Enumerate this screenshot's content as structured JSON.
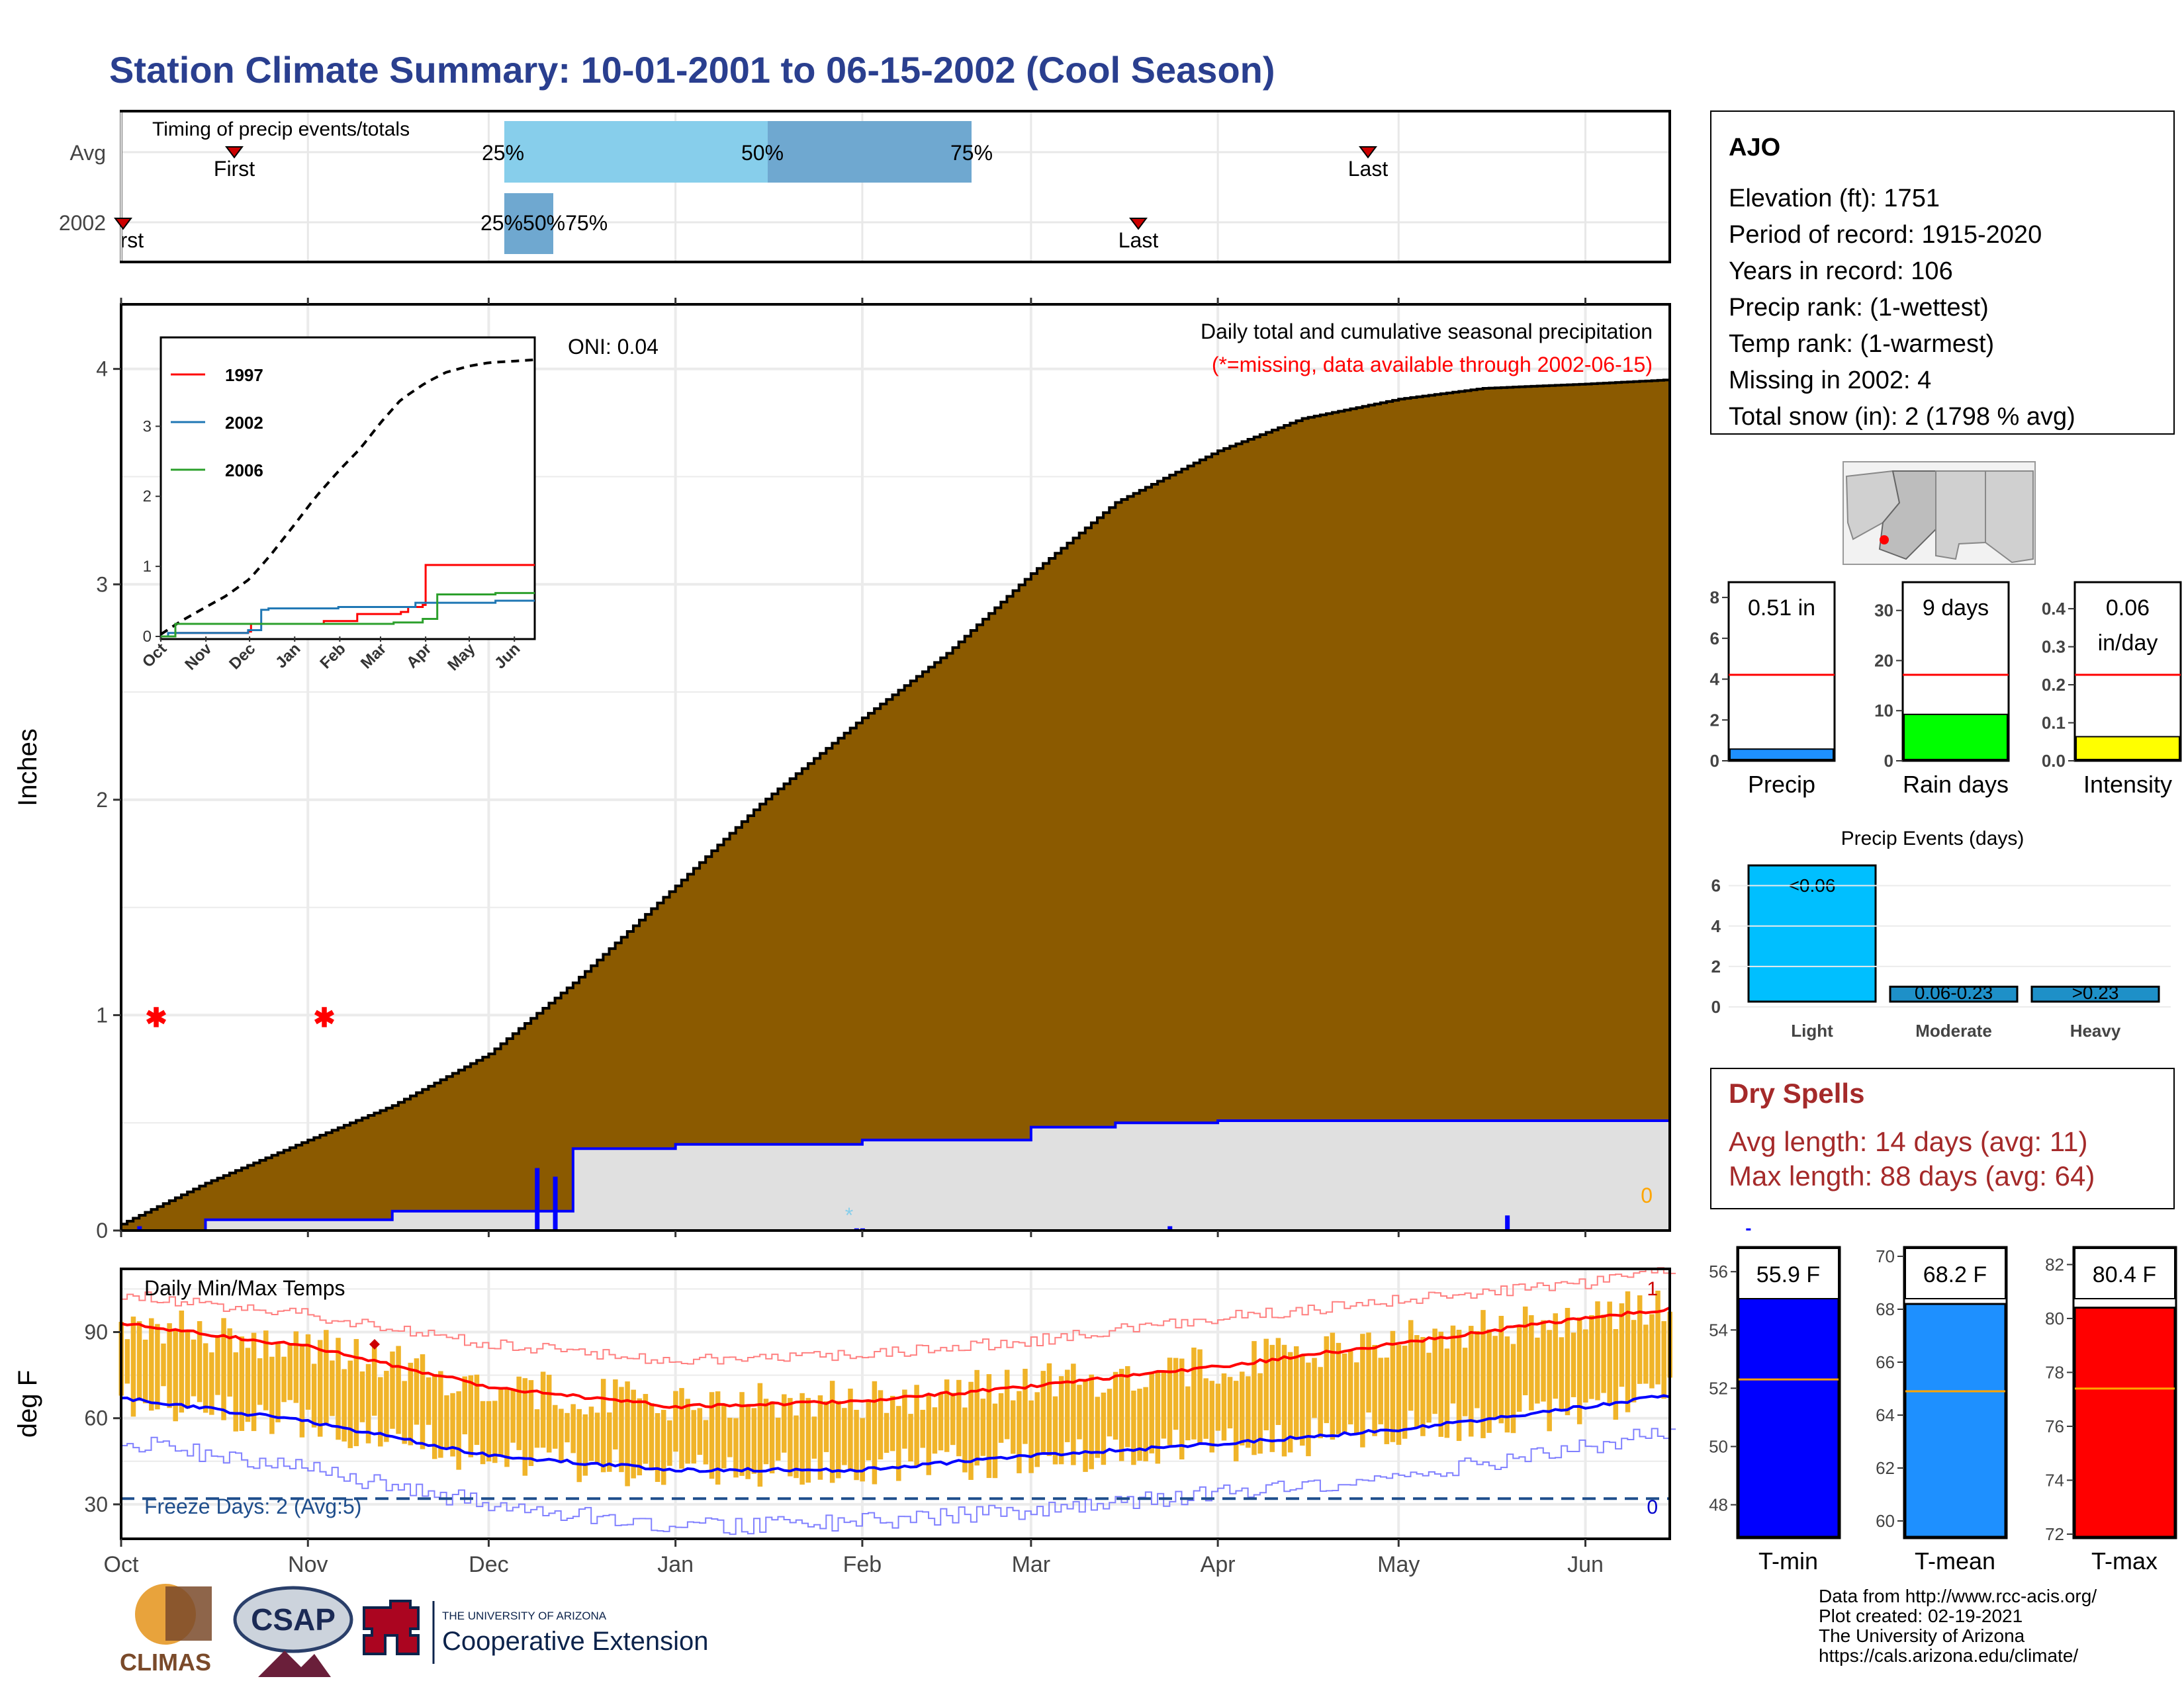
{
  "title": "Station Climate Summary: 10-01-2001 to 06-15-2002 (Cool Season)",
  "colors": {
    "title": "#2a3f8f",
    "cumulative_fill": "#8b5a00",
    "avg_band": "#e0e0e0",
    "precip_line": "#0000ff",
    "timing_light": "#87ceeb",
    "timing_dark": "#6fa8d0",
    "tmax_avg": "#ff0000",
    "tmin_avg": "#0000ff",
    "temp_bars": "#f0b429",
    "dry_spells": "#a52a2a",
    "freeze_line": "#1f4e8c",
    "rain_days_bar": "#00ff00",
    "intensity_bar": "#ffff00",
    "precip_bar": "#1e90ff",
    "tmin_bar": "#0000ff",
    "tmean_bar": "#1e90ff",
    "tmax_bar": "#ff0000",
    "events_light": "#00bfff",
    "events_other": "#1e90c8"
  },
  "timing": {
    "title": "Timing of precip events/totals",
    "rows": [
      "Avg",
      "2002"
    ],
    "avg": {
      "first_label": "First",
      "last_label": "Last",
      "p25": "25%",
      "p50": "50%",
      "p75": "75%"
    },
    "y2002": {
      "first_label": "First",
      "last_label": "Last",
      "p_label": "25%50%75%"
    }
  },
  "station": {
    "name": "AJO",
    "lines": [
      "Elevation (ft): 1751",
      "Period of record: 1915-2020",
      "Years in record: 106",
      "Precip rank:  (1-wettest)",
      "Temp rank:  (1-warmest)",
      "Missing in 2002: 4",
      "Total snow (in): 2 (1798 % avg)"
    ]
  },
  "main_chart": {
    "ylabel": "Inches",
    "yticks": [
      "0",
      "1",
      "2",
      "3",
      "4"
    ],
    "annotation_title": "Daily total and cumulative seasonal precipitation",
    "annotation_missing": "(*=missing, data available through 2002-06-15)",
    "oni": "ONI: 0.04",
    "zero_label": "0"
  },
  "inset": {
    "legend": [
      "1997",
      "2002",
      "2006"
    ],
    "legend_colors": [
      "#ff0000",
      "#1f77b4",
      "#2ca02c"
    ],
    "yticks": [
      "0",
      "1",
      "2",
      "3"
    ],
    "months": [
      "Oct",
      "Nov",
      "Dec",
      "Jan",
      "Feb",
      "Mar",
      "Apr",
      "May",
      "Jun"
    ]
  },
  "temp_chart": {
    "title": "Daily Min/Max Temps",
    "ylabel": "deg F",
    "yticks": [
      "30",
      "60",
      "90"
    ],
    "freeze": "Freeze Days: 2 (Avg:5)",
    "count_top": "1",
    "count_bottom": "0",
    "months": [
      "Oct",
      "Nov",
      "Dec",
      "Jan",
      "Feb",
      "Mar",
      "Apr",
      "May",
      "Jun"
    ]
  },
  "mini_bars": {
    "precip": {
      "label": "Precip",
      "value_label": "0.51 in",
      "yticks": [
        "0",
        "2",
        "4",
        "6",
        "8"
      ]
    },
    "rain_days": {
      "label": "Rain days",
      "value_label": "9 days",
      "yticks": [
        "0",
        "10",
        "20",
        "30"
      ]
    },
    "intensity": {
      "label": "Intensity",
      "value_label": "0.06",
      "unit_label": "in/day",
      "yticks": [
        "0.0",
        "0.1",
        "0.2",
        "0.3",
        "0.4"
      ]
    }
  },
  "events": {
    "title": "Precip Events (days)",
    "categories": [
      "Light",
      "Moderate",
      "Heavy"
    ],
    "bar_labels": [
      "<0.06",
      "0.06-0.23",
      ">0.23"
    ],
    "yticks": [
      "0",
      "2",
      "4",
      "6"
    ]
  },
  "dry_spells": {
    "title": "Dry Spells",
    "avg": "Avg length: 14 days (avg: 11)",
    "max": "Max length: 88 days (avg: 64)"
  },
  "temps_summary": {
    "tmin": {
      "label": "T-min",
      "value_label": "55.9 F",
      "yticks": [
        "48",
        "50",
        "52",
        "54",
        "56"
      ]
    },
    "tmean": {
      "label": "T-mean",
      "value_label": "68.2 F",
      "yticks": [
        "60",
        "62",
        "64",
        "66",
        "68",
        "70"
      ]
    },
    "tmax": {
      "label": "T-max",
      "value_label": "80.4 F",
      "yticks": [
        "72",
        "74",
        "76",
        "78",
        "80",
        "82"
      ]
    }
  },
  "footer": {
    "credits": [
      "Data from http://www.rcc-acis.org/",
      "Plot created: 02-19-2021",
      "The University of Arizona",
      "https://cals.arizona.edu/climate/"
    ],
    "logo_climas": "CLIMAS",
    "logo_csap": "CSAP",
    "ua_small": "THE UNIVERSITY OF ARIZONA",
    "ua_large": "Cooperative Extension"
  },
  "chart_data": [
    {
      "type": "area",
      "name": "cumulative",
      "x": [
        "2001-10-01",
        "2001-10-15",
        "2001-11-01",
        "2001-11-15",
        "2001-12-01",
        "2001-12-15",
        "2002-01-01",
        "2002-01-15",
        "2002-02-01",
        "2002-02-15",
        "2002-03-01",
        "2002-03-15",
        "2002-04-01",
        "2002-04-15",
        "2002-05-01",
        "2002-05-15",
        "2002-06-01",
        "2002-06-15"
      ],
      "series": [
        {
          "name": "Avg",
          "values": [
            0.03,
            0.22,
            0.42,
            0.58,
            0.82,
            1.15,
            1.6,
            1.98,
            2.38,
            2.68,
            3.05,
            3.38,
            3.62,
            3.77,
            3.86,
            3.91,
            3.93,
            3.95
          ]
        },
        {
          "name": "2002",
          "values": [
            0.0,
            0.05,
            0.05,
            0.09,
            0.09,
            0.38,
            0.4,
            0.4,
            0.42,
            0.42,
            0.48,
            0.5,
            0.51,
            0.51,
            0.51,
            0.51,
            0.51,
            0.51
          ]
        }
      ],
      "ylim": [
        0,
        4.3
      ],
      "ylabel": "Inches"
    },
    {
      "type": "line",
      "name": "temps",
      "x": [
        "2001-10-01",
        "2001-11-01",
        "2001-12-01",
        "2002-01-01",
        "2002-02-01",
        "2002-03-01",
        "2002-04-01",
        "2002-05-01",
        "2002-06-01",
        "2002-06-15"
      ],
      "series": [
        {
          "name": "Avg max",
          "values": [
            93,
            85,
            71,
            64,
            66,
            71,
            78,
            86,
            95,
            98
          ]
        },
        {
          "name": "Avg min",
          "values": [
            67,
            59,
            47,
            42,
            42,
            47,
            51,
            56,
            64,
            68
          ]
        },
        {
          "name": "Record high",
          "values": [
            103,
            96,
            86,
            80,
            82,
            87,
            95,
            101,
            107,
            112
          ]
        },
        {
          "name": "Record low",
          "values": [
            52,
            42,
            30,
            22,
            24,
            28,
            34,
            40,
            50,
            56
          ]
        }
      ],
      "freeze_line": 32,
      "ylim": [
        18,
        112
      ],
      "ylabel": "deg F"
    },
    {
      "type": "bar",
      "name": "events",
      "categories": [
        "Light",
        "Moderate",
        "Heavy"
      ],
      "values": [
        7,
        1,
        1
      ],
      "ylim": [
        0,
        7.2
      ]
    },
    {
      "type": "bar",
      "name": "precip_summary",
      "categories": [
        "Precip",
        "Rain days",
        "Intensity"
      ],
      "values": [
        0.51,
        9,
        0.06
      ],
      "averages": [
        4.5,
        19,
        0.24
      ]
    },
    {
      "type": "bar",
      "name": "temp_summary",
      "categories": [
        "T-min",
        "T-mean",
        "T-max"
      ],
      "values": [
        55.9,
        68.2,
        80.4
      ],
      "averages": [
        52.3,
        64.9,
        77.4
      ]
    }
  ]
}
